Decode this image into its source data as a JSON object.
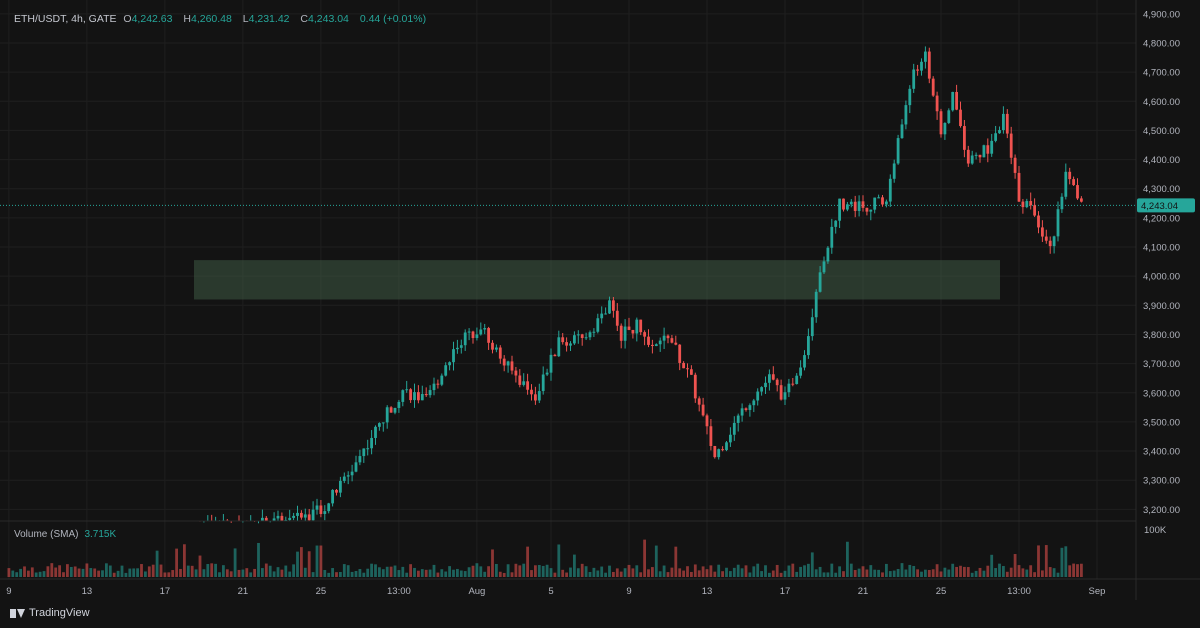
{
  "header": {
    "symbol": "ETH/USDT, 4h, GATE",
    "open_key": "O",
    "open": "4,242.63",
    "high_key": "H",
    "high": "4,260.48",
    "low_key": "L",
    "low": "4,231.42",
    "close_key": "C",
    "close": "4,243.04",
    "change": "0.44 (+0.01%)"
  },
  "volume_label": {
    "title": "Volume (SMA)",
    "value": "3.715K"
  },
  "brand": "TradingView",
  "colors": {
    "up": "#26a69a",
    "down": "#ef5350",
    "zone": "#3e5a43",
    "price_tag": "#26a69a"
  },
  "chart_data": {
    "type": "candlestick",
    "symbol": "ETH/USDT",
    "timeframe": "4h",
    "exchange": "GATE",
    "last_price": 4243.04,
    "last_price_label": "4,243.04",
    "y_axis": {
      "ylim": [
        3160,
        4920
      ],
      "ticks": [
        3200,
        3300,
        3400,
        3500,
        3600,
        3700,
        3800,
        3900,
        4000,
        4100,
        4200,
        4300,
        4400,
        4500,
        4600,
        4700,
        4800,
        4900
      ],
      "tick_labels": [
        "3,200.00",
        "3,300.00",
        "3,400.00",
        "3,500.00",
        "3,600.00",
        "3,700.00",
        "3,800.00",
        "3,900.00",
        "4,000.00",
        "4,100.00",
        "4,200.00",
        "4,300.00",
        "4,400.00",
        "4,500.00",
        "4,600.00",
        "4,700.00",
        "4,800.00",
        "4,900.00"
      ]
    },
    "x_axis": {
      "tick_labels": [
        "9",
        "13",
        "17",
        "21",
        "25",
        "13:00",
        "Aug",
        "5",
        "9",
        "13",
        "17",
        "21",
        "25",
        "13:00",
        "Sep"
      ],
      "tick_index": [
        0,
        20,
        40,
        60,
        80,
        100,
        120,
        139,
        159,
        179,
        199,
        219,
        239,
        259,
        279
      ]
    },
    "volume_axis": {
      "label": "100K"
    },
    "support_zone": {
      "price_low": 3920,
      "price_high": 4055
    },
    "key_points": [
      {
        "index": 0,
        "price": 3140
      },
      {
        "index": 24,
        "price": 3160
      },
      {
        "index": 32,
        "price": 3210
      },
      {
        "index": 38,
        "price": 3320
      },
      {
        "index": 44,
        "price": 3450
      },
      {
        "index": 52,
        "price": 3610
      },
      {
        "index": 58,
        "price": 3570
      },
      {
        "index": 66,
        "price": 3770
      },
      {
        "index": 72,
        "price": 3830
      },
      {
        "index": 78,
        "price": 3700
      },
      {
        "index": 86,
        "price": 3590
      },
      {
        "index": 92,
        "price": 3770
      },
      {
        "index": 98,
        "price": 3780
      },
      {
        "index": 105,
        "price": 3900
      },
      {
        "index": 108,
        "price": 3800
      },
      {
        "index": 112,
        "price": 3830
      },
      {
        "index": 116,
        "price": 3740
      },
      {
        "index": 120,
        "price": 3800
      },
      {
        "index": 126,
        "price": 3640
      },
      {
        "index": 132,
        "price": 3380
      },
      {
        "index": 140,
        "price": 3560
      },
      {
        "index": 146,
        "price": 3650
      },
      {
        "index": 150,
        "price": 3580
      },
      {
        "index": 155,
        "price": 3740
      },
      {
        "index": 159,
        "price": 4020
      },
      {
        "index": 164,
        "price": 4250
      },
      {
        "index": 170,
        "price": 4240
      },
      {
        "index": 176,
        "price": 4260
      },
      {
        "index": 182,
        "price": 4660
      },
      {
        "index": 186,
        "price": 4770
      },
      {
        "index": 190,
        "price": 4470
      },
      {
        "index": 193,
        "price": 4630
      },
      {
        "index": 197,
        "price": 4390
      },
      {
        "index": 202,
        "price": 4440
      },
      {
        "index": 206,
        "price": 4540
      },
      {
        "index": 210,
        "price": 4270
      },
      {
        "index": 214,
        "price": 4220
      },
      {
        "index": 218,
        "price": 4090
      },
      {
        "index": 222,
        "price": 4350
      },
      {
        "index": 226,
        "price": 4243
      }
    ]
  }
}
